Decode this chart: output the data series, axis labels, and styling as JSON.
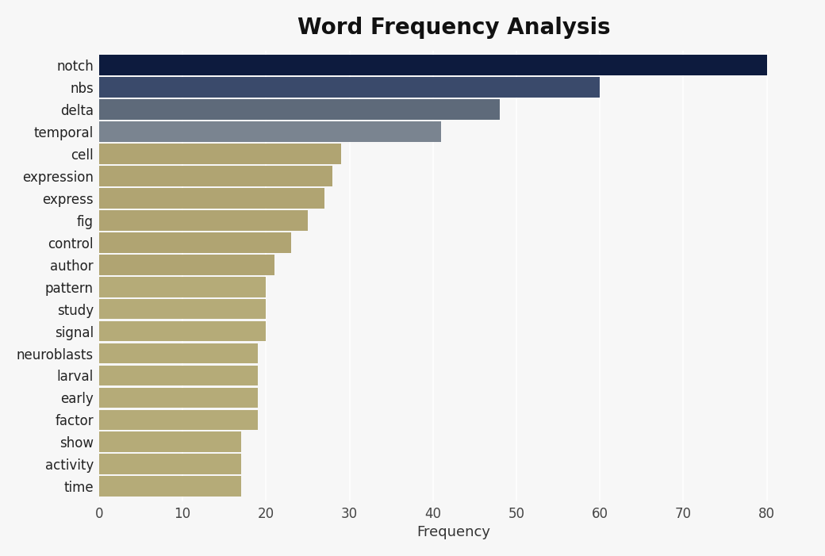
{
  "title": "Word Frequency Analysis",
  "xlabel": "Frequency",
  "categories": [
    "notch",
    "nbs",
    "delta",
    "temporal",
    "cell",
    "expression",
    "express",
    "fig",
    "control",
    "author",
    "pattern",
    "study",
    "signal",
    "neuroblasts",
    "larval",
    "early",
    "factor",
    "show",
    "activity",
    "time"
  ],
  "values": [
    80,
    60,
    48,
    41,
    29,
    28,
    27,
    25,
    23,
    21,
    20,
    20,
    20,
    19,
    19,
    19,
    19,
    17,
    17,
    17
  ],
  "bar_colors": [
    "#0d1b3e",
    "#3a4a6b",
    "#5e6a7a",
    "#7a8490",
    "#b0a472",
    "#b0a472",
    "#b0a472",
    "#b0a472",
    "#b0a472",
    "#b0a472",
    "#b5ab78",
    "#b5ab78",
    "#b5ab78",
    "#b5ab78",
    "#b5ab78",
    "#b5ab78",
    "#b5ab78",
    "#b5ab78",
    "#b5ab78",
    "#b5ab78"
  ],
  "xlim": [
    0,
    85
  ],
  "xticks": [
    0,
    10,
    20,
    30,
    40,
    50,
    60,
    70,
    80
  ],
  "background_color": "#f7f7f7",
  "title_fontsize": 20,
  "label_fontsize": 13,
  "tick_fontsize": 12,
  "bar_height": 0.92
}
